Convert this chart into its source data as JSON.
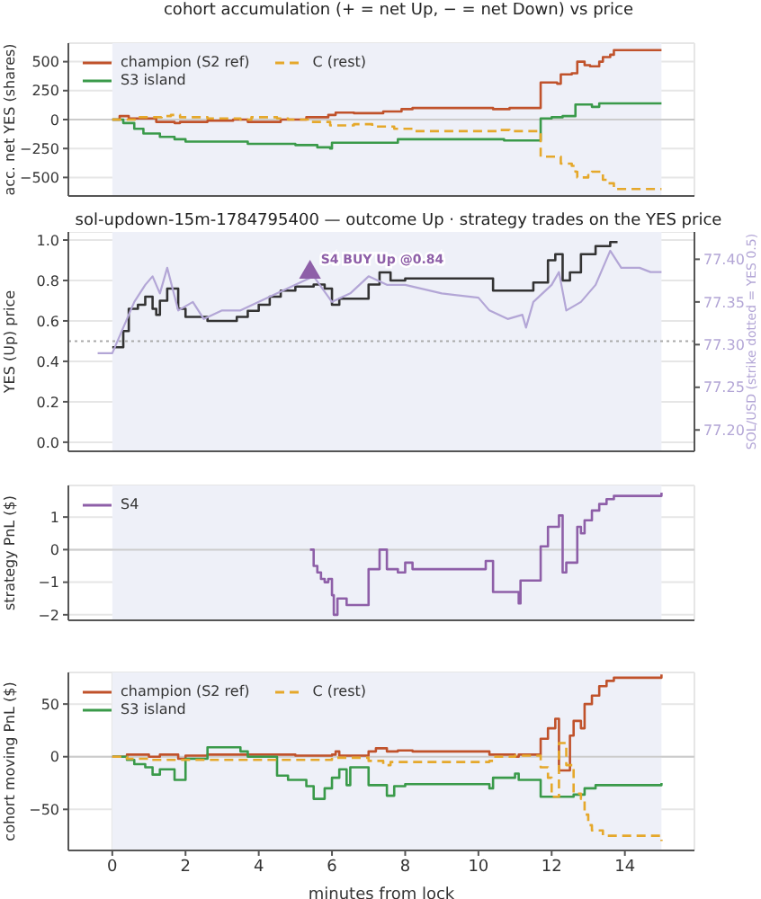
{
  "chart_data": [
    {
      "type": "step",
      "title": "cohort accumulation (+ = net Up, − = net Down) vs price",
      "ylabel": "acc. net YES (shares)",
      "xlim": [
        -1.2,
        15.9
      ],
      "xticks": [
        0,
        2,
        4,
        6,
        8,
        10,
        12,
        14
      ],
      "ylim": [
        -660,
        660
      ],
      "yticks": [
        {
          "value": -500,
          "label": "−500"
        },
        {
          "value": -250,
          "label": "−250"
        },
        0,
        250,
        500
      ],
      "tick_labels": "y",
      "grid": true,
      "legend": "top left",
      "bands": [
        {
          "axis": "x",
          "from": 0,
          "to": 15,
          "color": "#eef0f8"
        }
      ],
      "ref_lines": [
        {
          "axis": "y",
          "value": 0,
          "color": "#cccccc"
        }
      ],
      "series": [
        {
          "name": "champion (S2 ref)",
          "color": "#c0522b",
          "x": [
            0,
            0.2,
            0.45,
            1.2,
            1.7,
            1.85,
            2.6,
            3.3,
            3.7,
            4.6,
            5.3,
            5.9,
            6.1,
            6.6,
            7.4,
            7.9,
            8.2,
            10.4,
            10.85,
            11.7,
            12.15,
            12.25,
            12.55,
            12.7,
            12.9,
            13.05,
            13.3,
            13.4,
            13.6,
            13.7,
            15
          ],
          "values": [
            0,
            30,
            10,
            -20,
            -30,
            -20,
            -10,
            0,
            -20,
            0,
            20,
            40,
            60,
            55,
            70,
            90,
            100,
            90,
            100,
            320,
            310,
            390,
            400,
            500,
            470,
            460,
            500,
            540,
            560,
            600,
            600
          ]
        },
        {
          "name": "S3 island",
          "color": "#3a9a4a",
          "x": [
            0,
            0.3,
            0.6,
            0.85,
            1.3,
            1.7,
            2,
            3.7,
            5,
            5.6,
            5.95,
            6,
            7.25,
            7.8,
            10.7,
            11.7,
            12,
            12.3,
            12.65,
            13.1,
            13.3,
            15
          ],
          "values": [
            0,
            -30,
            -80,
            -120,
            -150,
            -170,
            -190,
            -210,
            -220,
            -240,
            -250,
            -200,
            -200,
            -170,
            -180,
            10,
            20,
            30,
            130,
            110,
            140,
            140
          ]
        },
        {
          "name": "C (rest)",
          "color": "#e5a82b",
          "line_style": "dashed",
          "x": [
            0,
            0.7,
            1.35,
            1.6,
            1.85,
            2.6,
            3.5,
            3.8,
            4.5,
            4.8,
            5.4,
            5.95,
            6.6,
            7.1,
            7.7,
            8.2,
            10.6,
            10.85,
            11.7,
            12.25,
            12.55,
            12.65,
            12.7,
            13,
            13.1,
            13.4,
            13.55,
            13.7,
            15
          ],
          "values": [
            0,
            20,
            30,
            40,
            20,
            10,
            0,
            20,
            10,
            0,
            -20,
            -50,
            -40,
            -60,
            -80,
            -100,
            -90,
            -100,
            -320,
            -380,
            -400,
            -450,
            -500,
            -480,
            -450,
            -520,
            -550,
            -600,
            -600
          ]
        }
      ]
    },
    {
      "type": "step",
      "title": "sol-updown-15m-1784795400 — outcome Up · strategy trades on the YES price",
      "ylabel": "YES (Up) price",
      "y2label": "SOL/USD (strike dotted = YES 0.5)",
      "xlim": [
        -1.2,
        15.9
      ],
      "xticks": [
        0,
        2,
        4,
        6,
        8,
        10,
        12,
        14
      ],
      "ylim": [
        -0.045,
        1.04
      ],
      "yticks": [
        {
          "value": 0,
          "label": "0.0"
        },
        0.2,
        0.4,
        0.6,
        0.8,
        {
          "value": 1,
          "label": "1.0"
        }
      ],
      "y2lim": [
        77.175,
        77.432
      ],
      "y2ticks": [
        {
          "value": 77.2,
          "label": "77.20"
        },
        77.25,
        {
          "value": 77.3,
          "label": "77.30"
        },
        77.35,
        {
          "value": 77.4,
          "label": "77.40"
        }
      ],
      "tick_labels": "y",
      "grid": true,
      "bands": [
        {
          "axis": "x",
          "from": 0,
          "to": 15,
          "color": "#eef0f8"
        }
      ],
      "ref_lines": [
        {
          "axis": "y",
          "value": 0.5,
          "color": "#aaaaaa",
          "line_style": "dotted"
        }
      ],
      "annotations": [
        {
          "text": "S4 BUY Up @0.84",
          "x": 5.4,
          "y": 0.84
        }
      ],
      "series": [
        {
          "color": "#333333",
          "x": [
            0,
            0.3,
            0.45,
            0.7,
            0.9,
            1.1,
            1.2,
            1.3,
            1.5,
            1.8,
            2,
            2.6,
            3.4,
            3.7,
            4,
            4.3,
            4.6,
            5,
            5.5,
            5.8,
            6,
            6.2,
            7,
            7.3,
            7.6,
            8,
            10.2,
            10.4,
            11.5,
            11.9,
            12.1,
            12.3,
            12.5,
            12.8,
            13.2,
            13.6,
            13.8
          ],
          "values": [
            0.47,
            0.55,
            0.66,
            0.68,
            0.72,
            0.66,
            0.63,
            0.7,
            0.76,
            0.66,
            0.62,
            0.6,
            0.62,
            0.65,
            0.68,
            0.72,
            0.75,
            0.77,
            0.78,
            0.76,
            0.68,
            0.71,
            0.78,
            0.84,
            0.8,
            0.81,
            0.81,
            0.75,
            0.79,
            0.9,
            0.93,
            0.8,
            0.84,
            0.93,
            0.97,
            0.99,
            0.99
          ]
        },
        {
          "type": "line",
          "axis": "y2",
          "color": "#b3a6d6",
          "x": [
            -0.4,
            0,
            0.3,
            0.6,
            0.9,
            1.1,
            1.3,
            1.5,
            1.8,
            2.2,
            2.5,
            3,
            3.5,
            4,
            4.5,
            5,
            5.5,
            6,
            6.5,
            7,
            7.5,
            8,
            9,
            10,
            10.3,
            10.8,
            11.2,
            11.3,
            11.5,
            12,
            12.2,
            12.4,
            12.8,
            13.2,
            13.6,
            13.9,
            14.4,
            14.7,
            15
          ],
          "values": [
            77.29,
            77.29,
            77.32,
            77.35,
            77.37,
            77.38,
            77.36,
            77.39,
            77.34,
            77.35,
            77.33,
            77.34,
            77.34,
            77.35,
            77.36,
            77.37,
            77.38,
            77.35,
            77.36,
            77.38,
            77.37,
            77.37,
            77.36,
            77.355,
            77.34,
            77.33,
            77.335,
            77.32,
            77.35,
            77.37,
            77.385,
            77.34,
            77.35,
            77.37,
            77.41,
            77.39,
            77.39,
            77.385,
            77.385
          ]
        },
        {
          "type": "scatter",
          "color": "#8e5fa8",
          "marker": "triangle",
          "x": [
            5.4
          ],
          "values": [
            0.84
          ]
        }
      ]
    },
    {
      "type": "step",
      "ylabel": "strategy PnL ($)",
      "xlim": [
        -1.2,
        15.9
      ],
      "xticks": [
        0,
        2,
        4,
        6,
        8,
        10,
        12,
        14
      ],
      "ylim": [
        -2.17,
        1.97
      ],
      "yticks": [
        {
          "value": -2,
          "label": "−2"
        },
        {
          "value": -1,
          "label": "−1"
        },
        0,
        1
      ],
      "tick_labels": "y",
      "grid": true,
      "legend": "top left",
      "bands": [
        {
          "axis": "x",
          "from": 0,
          "to": 15,
          "color": "#eef0f8"
        }
      ],
      "ref_lines": [
        {
          "axis": "y",
          "value": 0,
          "color": "#cccccc"
        }
      ],
      "series": [
        {
          "name": "S4",
          "color": "#8e5fa8",
          "x": [
            5.4,
            5.5,
            5.6,
            5.7,
            5.8,
            5.9,
            6,
            6.05,
            6.15,
            6.3,
            6.4,
            7,
            7.3,
            7.5,
            7.8,
            8,
            8.2,
            10.2,
            10.4,
            11,
            11.1,
            11.15,
            11.7,
            11.9,
            12.2,
            12.3,
            12.4,
            12.6,
            12.7,
            12.8,
            12.9,
            13.1,
            13.3,
            13.5,
            13.7,
            15
          ],
          "values": [
            0,
            -0.5,
            -0.7,
            -0.9,
            -1,
            -0.9,
            -1.4,
            -2,
            -1.5,
            -1.5,
            -1.7,
            -0.6,
            0,
            -0.6,
            -0.7,
            -0.4,
            -0.6,
            -0.35,
            -1.3,
            -1.3,
            -1.65,
            -0.95,
            0.1,
            0.7,
            1.05,
            -0.7,
            -0.4,
            -0.4,
            0.7,
            0.5,
            0.9,
            1.2,
            1.4,
            1.55,
            1.65,
            1.75
          ]
        }
      ]
    },
    {
      "type": "step",
      "xlabel": "minutes from lock",
      "ylabel": "cohort moving PnL ($)",
      "xlim": [
        -1.2,
        15.9
      ],
      "xticks": [
        0,
        2,
        4,
        6,
        8,
        10,
        12,
        14
      ],
      "ylim": [
        -89,
        80
      ],
      "yticks": [
        {
          "value": -50,
          "label": "−50"
        },
        0,
        50
      ],
      "grid": true,
      "legend": "top left",
      "bands": [
        {
          "axis": "x",
          "from": 0,
          "to": 15,
          "color": "#eef0f8"
        }
      ],
      "ref_lines": [
        {
          "axis": "y",
          "value": 0,
          "color": "#cccccc"
        }
      ],
      "series": [
        {
          "name": "champion (S2 ref)",
          "color": "#c0522b",
          "x": [
            0,
            0.4,
            1,
            1.3,
            1.8,
            2,
            2.6,
            4,
            5,
            6,
            6.1,
            6.2,
            7,
            7.2,
            7.5,
            7.8,
            8.2,
            10.3,
            11,
            11.1,
            11.7,
            11.9,
            12.1,
            12.2,
            12.4,
            12.5,
            12.6,
            12.8,
            12.9,
            13.1,
            13.3,
            13.5,
            13.7,
            15
          ],
          "values": [
            0,
            2,
            0,
            2,
            -2,
            1,
            2,
            2,
            1,
            2,
            5,
            1,
            5,
            8,
            5,
            6,
            5,
            2,
            0,
            2,
            17,
            27,
            36,
            -13,
            -13,
            20,
            34,
            27,
            50,
            58,
            67,
            72,
            75,
            78
          ]
        },
        {
          "name": "S3 island",
          "color": "#3a9a4a",
          "x": [
            0,
            0.4,
            0.6,
            0.9,
            1.1,
            1.3,
            1.5,
            1.7,
            2,
            2.6,
            3.5,
            3.7,
            4.5,
            4.8,
            5.3,
            5.5,
            5.8,
            6,
            6.2,
            6.4,
            6.5,
            7,
            7.5,
            7.7,
            8,
            10.3,
            10.4,
            11,
            11.1,
            11.7,
            12.6,
            12.9,
            13.2,
            15
          ],
          "values": [
            0,
            -3,
            -7,
            -10,
            -17,
            -12,
            -12,
            -22,
            -2,
            9,
            5,
            0,
            -18,
            -22,
            -28,
            -40,
            -30,
            -20,
            -12,
            -27,
            -10,
            -27,
            -37,
            -28,
            -26,
            -30,
            -20,
            -16,
            -22,
            -38,
            -36,
            -30,
            -27,
            -25
          ]
        },
        {
          "name": "C (rest)",
          "color": "#e5a82b",
          "line_style": "dashed",
          "x": [
            0,
            0.4,
            1,
            5.4,
            6,
            7,
            7.4,
            7.6,
            10.3,
            10.4,
            11,
            11.7,
            11.9,
            12,
            12.2,
            12.4,
            12.6,
            12.8,
            12.9,
            13,
            13.1,
            13.4,
            15
          ],
          "values": [
            0,
            -2,
            -3,
            -3,
            -1,
            -4,
            -8,
            -5,
            -4,
            0,
            1,
            -10,
            -20,
            -38,
            13,
            -8,
            -35,
            -40,
            -55,
            -65,
            -70,
            -75,
            -80
          ]
        }
      ]
    }
  ]
}
